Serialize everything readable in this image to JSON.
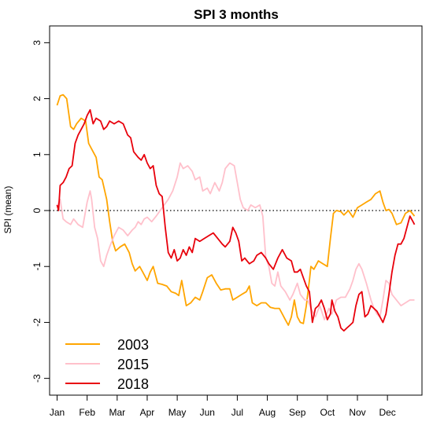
{
  "chart_data": {
    "type": "line",
    "title": "SPI 3 months",
    "ylabel": "SPI (mean)",
    "xlabel": "",
    "x_categories": [
      "Jan",
      "Feb",
      "Mar",
      "Apr",
      "May",
      "Jun",
      "Jul",
      "Aug",
      "Sep",
      "Oct",
      "Nov",
      "Dec"
    ],
    "x_range": [
      0,
      11.9
    ],
    "ylim": [
      -3.3,
      3.3
    ],
    "yticks": [
      3,
      2,
      1,
      0,
      -1,
      -2,
      -3
    ],
    "reference_line": {
      "y": 0,
      "style": "dotted"
    },
    "legend_position": "bottom-left",
    "series": [
      {
        "name": "2003",
        "color": "#FFA500",
        "points": [
          [
            0,
            1.88
          ],
          [
            0.1,
            2.05
          ],
          [
            0.2,
            2.07
          ],
          [
            0.32,
            2.0
          ],
          [
            0.45,
            1.5
          ],
          [
            0.55,
            1.45
          ],
          [
            0.65,
            1.55
          ],
          [
            0.8,
            1.65
          ],
          [
            0.95,
            1.6
          ],
          [
            1.05,
            1.2
          ],
          [
            1.15,
            1.1
          ],
          [
            1.3,
            0.95
          ],
          [
            1.4,
            0.6
          ],
          [
            1.5,
            0.55
          ],
          [
            1.65,
            0.2
          ],
          [
            1.75,
            -0.2
          ],
          [
            1.85,
            -0.55
          ],
          [
            1.95,
            -0.72
          ],
          [
            2.1,
            -0.65
          ],
          [
            2.25,
            -0.6
          ],
          [
            2.4,
            -0.75
          ],
          [
            2.5,
            -0.95
          ],
          [
            2.6,
            -1.08
          ],
          [
            2.75,
            -1.0
          ],
          [
            2.85,
            -1.1
          ],
          [
            3.0,
            -1.25
          ],
          [
            3.1,
            -1.1
          ],
          [
            3.2,
            -1.0
          ],
          [
            3.35,
            -1.3
          ],
          [
            3.5,
            -1.32
          ],
          [
            3.65,
            -1.35
          ],
          [
            3.8,
            -1.45
          ],
          [
            3.95,
            -1.48
          ],
          [
            4.05,
            -1.52
          ],
          [
            4.15,
            -1.25
          ],
          [
            4.3,
            -1.7
          ],
          [
            4.45,
            -1.65
          ],
          [
            4.6,
            -1.55
          ],
          [
            4.75,
            -1.6
          ],
          [
            4.85,
            -1.45
          ],
          [
            5.0,
            -1.2
          ],
          [
            5.15,
            -1.15
          ],
          [
            5.3,
            -1.3
          ],
          [
            5.45,
            -1.42
          ],
          [
            5.6,
            -1.4
          ],
          [
            5.75,
            -1.4
          ],
          [
            5.85,
            -1.6
          ],
          [
            6.0,
            -1.55
          ],
          [
            6.15,
            -1.5
          ],
          [
            6.3,
            -1.45
          ],
          [
            6.4,
            -1.35
          ],
          [
            6.5,
            -1.65
          ],
          [
            6.65,
            -1.7
          ],
          [
            6.8,
            -1.65
          ],
          [
            6.95,
            -1.65
          ],
          [
            7.1,
            -1.73
          ],
          [
            7.25,
            -1.75
          ],
          [
            7.4,
            -1.75
          ],
          [
            7.5,
            -1.85
          ],
          [
            7.6,
            -1.95
          ],
          [
            7.7,
            -2.05
          ],
          [
            7.8,
            -1.9
          ],
          [
            7.9,
            -1.6
          ],
          [
            8.0,
            -1.9
          ],
          [
            8.1,
            -2.0
          ],
          [
            8.2,
            -2.02
          ],
          [
            8.3,
            -1.7
          ],
          [
            8.4,
            -1.25
          ],
          [
            8.45,
            -1.0
          ],
          [
            8.55,
            -1.05
          ],
          [
            8.7,
            -0.9
          ],
          [
            8.85,
            -0.95
          ],
          [
            9.0,
            -1.0
          ],
          [
            9.1,
            -0.5
          ],
          [
            9.2,
            -0.05
          ],
          [
            9.3,
            0.0
          ],
          [
            9.45,
            -0.02
          ],
          [
            9.55,
            -0.08
          ],
          [
            9.7,
            0.0
          ],
          [
            9.85,
            -0.12
          ],
          [
            10.0,
            0.05
          ],
          [
            10.15,
            0.1
          ],
          [
            10.3,
            0.15
          ],
          [
            10.45,
            0.2
          ],
          [
            10.6,
            0.3
          ],
          [
            10.75,
            0.35
          ],
          [
            10.85,
            0.15
          ],
          [
            10.95,
            0.0
          ],
          [
            11.05,
            0.02
          ],
          [
            11.15,
            -0.05
          ],
          [
            11.3,
            -0.25
          ],
          [
            11.45,
            -0.22
          ],
          [
            11.6,
            -0.05
          ],
          [
            11.75,
            0.0
          ],
          [
            11.9,
            -0.1
          ]
        ]
      },
      {
        "name": "2015",
        "color": "#FFC0CB",
        "points": [
          [
            0,
            0.08
          ],
          [
            0.1,
            0.2
          ],
          [
            0.2,
            -0.15
          ],
          [
            0.3,
            -0.2
          ],
          [
            0.45,
            -0.25
          ],
          [
            0.55,
            -0.15
          ],
          [
            0.7,
            -0.25
          ],
          [
            0.85,
            -0.3
          ],
          [
            1.0,
            0.15
          ],
          [
            1.1,
            0.35
          ],
          [
            1.15,
            0.2
          ],
          [
            1.25,
            -0.3
          ],
          [
            1.35,
            -0.5
          ],
          [
            1.45,
            -0.9
          ],
          [
            1.55,
            -1.0
          ],
          [
            1.65,
            -0.8
          ],
          [
            1.75,
            -0.65
          ],
          [
            1.9,
            -0.45
          ],
          [
            2.05,
            -0.3
          ],
          [
            2.2,
            -0.35
          ],
          [
            2.35,
            -0.45
          ],
          [
            2.5,
            -0.35
          ],
          [
            2.6,
            -0.3
          ],
          [
            2.7,
            -0.2
          ],
          [
            2.8,
            -0.25
          ],
          [
            2.9,
            -0.15
          ],
          [
            3.0,
            -0.12
          ],
          [
            3.15,
            -0.2
          ],
          [
            3.3,
            -0.1
          ],
          [
            3.5,
            0.05
          ],
          [
            3.7,
            0.2
          ],
          [
            3.85,
            0.35
          ],
          [
            4.0,
            0.6
          ],
          [
            4.1,
            0.85
          ],
          [
            4.2,
            0.75
          ],
          [
            4.35,
            0.8
          ],
          [
            4.5,
            0.7
          ],
          [
            4.6,
            0.55
          ],
          [
            4.75,
            0.6
          ],
          [
            4.85,
            0.35
          ],
          [
            5.0,
            0.4
          ],
          [
            5.1,
            0.3
          ],
          [
            5.25,
            0.5
          ],
          [
            5.4,
            0.35
          ],
          [
            5.5,
            0.5
          ],
          [
            5.6,
            0.75
          ],
          [
            5.75,
            0.85
          ],
          [
            5.9,
            0.8
          ],
          [
            6.0,
            0.5
          ],
          [
            6.1,
            0.2
          ],
          [
            6.2,
            0.05
          ],
          [
            6.35,
            0.0
          ],
          [
            6.45,
            0.1
          ],
          [
            6.6,
            0.05
          ],
          [
            6.75,
            0.1
          ],
          [
            6.85,
            -0.1
          ],
          [
            6.95,
            -0.85
          ],
          [
            7.05,
            -1.0
          ],
          [
            7.15,
            -1.3
          ],
          [
            7.25,
            -1.35
          ],
          [
            7.35,
            -1.1
          ],
          [
            7.45,
            -1.35
          ],
          [
            7.6,
            -1.45
          ],
          [
            7.75,
            -1.6
          ],
          [
            7.85,
            -1.5
          ],
          [
            8.0,
            -1.3
          ],
          [
            8.1,
            -1.5
          ],
          [
            8.25,
            -1.6
          ],
          [
            8.35,
            -1.6
          ],
          [
            8.45,
            -1.75
          ],
          [
            8.6,
            -1.9
          ],
          [
            8.75,
            -1.7
          ],
          [
            8.9,
            -1.95
          ],
          [
            9.05,
            -1.75
          ],
          [
            9.15,
            -1.85
          ],
          [
            9.3,
            -1.6
          ],
          [
            9.45,
            -1.55
          ],
          [
            9.6,
            -1.55
          ],
          [
            9.75,
            -1.4
          ],
          [
            9.85,
            -1.25
          ],
          [
            9.95,
            -1.05
          ],
          [
            10.05,
            -0.95
          ],
          [
            10.15,
            -1.05
          ],
          [
            10.3,
            -1.3
          ],
          [
            10.45,
            -1.6
          ],
          [
            10.55,
            -1.75
          ],
          [
            10.65,
            -1.85
          ],
          [
            10.75,
            -1.9
          ],
          [
            10.85,
            -1.6
          ],
          [
            10.95,
            -1.25
          ],
          [
            11.05,
            -1.3
          ],
          [
            11.15,
            -1.5
          ],
          [
            11.3,
            -1.6
          ],
          [
            11.45,
            -1.7
          ],
          [
            11.6,
            -1.65
          ],
          [
            11.75,
            -1.6
          ],
          [
            11.9,
            -1.6
          ]
        ]
      },
      {
        "name": "2018",
        "color": "#E8000B",
        "points": [
          [
            0,
            0.1
          ],
          [
            0.05,
            0.0
          ],
          [
            0.1,
            0.45
          ],
          [
            0.2,
            0.5
          ],
          [
            0.3,
            0.6
          ],
          [
            0.4,
            0.75
          ],
          [
            0.5,
            0.8
          ],
          [
            0.6,
            1.2
          ],
          [
            0.7,
            1.35
          ],
          [
            0.8,
            1.45
          ],
          [
            0.9,
            1.55
          ],
          [
            1.0,
            1.7
          ],
          [
            1.1,
            1.8
          ],
          [
            1.2,
            1.55
          ],
          [
            1.3,
            1.65
          ],
          [
            1.45,
            1.6
          ],
          [
            1.55,
            1.45
          ],
          [
            1.65,
            1.5
          ],
          [
            1.75,
            1.6
          ],
          [
            1.9,
            1.55
          ],
          [
            2.05,
            1.6
          ],
          [
            2.2,
            1.55
          ],
          [
            2.35,
            1.35
          ],
          [
            2.45,
            1.3
          ],
          [
            2.55,
            1.05
          ],
          [
            2.7,
            0.95
          ],
          [
            2.8,
            0.9
          ],
          [
            2.9,
            1.0
          ],
          [
            3.0,
            0.85
          ],
          [
            3.1,
            0.75
          ],
          [
            3.2,
            0.8
          ],
          [
            3.3,
            0.45
          ],
          [
            3.4,
            0.3
          ],
          [
            3.5,
            0.25
          ],
          [
            3.6,
            -0.3
          ],
          [
            3.7,
            -0.75
          ],
          [
            3.8,
            -0.85
          ],
          [
            3.9,
            -0.7
          ],
          [
            4.0,
            -0.9
          ],
          [
            4.1,
            -0.85
          ],
          [
            4.2,
            -0.7
          ],
          [
            4.3,
            -0.8
          ],
          [
            4.4,
            -0.65
          ],
          [
            4.5,
            -0.75
          ],
          [
            4.6,
            -0.5
          ],
          [
            4.75,
            -0.55
          ],
          [
            4.9,
            -0.5
          ],
          [
            5.05,
            -0.45
          ],
          [
            5.2,
            -0.4
          ],
          [
            5.35,
            -0.5
          ],
          [
            5.5,
            -0.6
          ],
          [
            5.6,
            -0.65
          ],
          [
            5.75,
            -0.55
          ],
          [
            5.85,
            -0.3
          ],
          [
            5.95,
            -0.4
          ],
          [
            6.05,
            -0.55
          ],
          [
            6.15,
            -0.9
          ],
          [
            6.25,
            -0.85
          ],
          [
            6.4,
            -0.95
          ],
          [
            6.55,
            -0.9
          ],
          [
            6.65,
            -0.8
          ],
          [
            6.8,
            -0.75
          ],
          [
            6.95,
            -0.85
          ],
          [
            7.05,
            -0.95
          ],
          [
            7.2,
            -1.05
          ],
          [
            7.35,
            -0.85
          ],
          [
            7.5,
            -0.7
          ],
          [
            7.65,
            -0.85
          ],
          [
            7.8,
            -0.9
          ],
          [
            7.9,
            -1.1
          ],
          [
            8.0,
            -1.1
          ],
          [
            8.1,
            -1.05
          ],
          [
            8.2,
            -1.2
          ],
          [
            8.3,
            -1.35
          ],
          [
            8.4,
            -1.45
          ],
          [
            8.5,
            -2.0
          ],
          [
            8.6,
            -1.75
          ],
          [
            8.7,
            -1.7
          ],
          [
            8.8,
            -1.6
          ],
          [
            8.9,
            -1.75
          ],
          [
            9.0,
            -1.95
          ],
          [
            9.1,
            -1.85
          ],
          [
            9.15,
            -1.6
          ],
          [
            9.25,
            -1.8
          ],
          [
            9.35,
            -1.9
          ],
          [
            9.45,
            -2.1
          ],
          [
            9.55,
            -2.15
          ],
          [
            9.65,
            -2.1
          ],
          [
            9.75,
            -2.05
          ],
          [
            9.85,
            -2.0
          ],
          [
            9.95,
            -1.7
          ],
          [
            10.05,
            -1.5
          ],
          [
            10.15,
            -1.45
          ],
          [
            10.25,
            -1.9
          ],
          [
            10.35,
            -1.85
          ],
          [
            10.45,
            -1.7
          ],
          [
            10.55,
            -1.75
          ],
          [
            10.65,
            -1.8
          ],
          [
            10.75,
            -1.9
          ],
          [
            10.85,
            -2.0
          ],
          [
            10.95,
            -1.85
          ],
          [
            11.05,
            -1.5
          ],
          [
            11.15,
            -1.1
          ],
          [
            11.25,
            -0.8
          ],
          [
            11.35,
            -0.6
          ],
          [
            11.45,
            -0.6
          ],
          [
            11.55,
            -0.5
          ],
          [
            11.65,
            -0.3
          ],
          [
            11.75,
            -0.1
          ],
          [
            11.85,
            -0.2
          ],
          [
            11.9,
            -0.25
          ]
        ]
      }
    ]
  }
}
